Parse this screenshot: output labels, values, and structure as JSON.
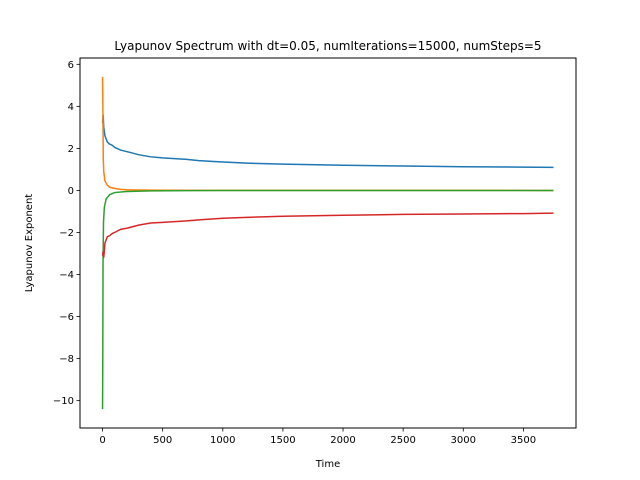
{
  "chart_data": {
    "type": "line",
    "title": "Lyapunov Spectrum with dt=0.05, numIterations=15000, numSteps=5",
    "xlabel": "Time",
    "ylabel": "Lyapunov Exponent",
    "xlim": [
      -187.5,
      3937.5
    ],
    "ylim": [
      -11.3,
      6.3
    ],
    "x_ticks": [
      0,
      500,
      1000,
      1500,
      2000,
      2500,
      3000,
      3500
    ],
    "y_ticks": [
      -10,
      -8,
      -6,
      -4,
      -2,
      0,
      2,
      4,
      6
    ],
    "grid": false,
    "legend": "none",
    "series": [
      {
        "color": "#1f77b4",
        "points": [
          [
            0,
            3.2
          ],
          [
            5,
            3.6
          ],
          [
            10,
            3.0
          ],
          [
            20,
            2.6
          ],
          [
            40,
            2.3
          ],
          [
            60,
            2.2
          ],
          [
            80,
            2.15
          ],
          [
            100,
            2.05
          ],
          [
            150,
            1.92
          ],
          [
            200,
            1.85
          ],
          [
            300,
            1.7
          ],
          [
            400,
            1.6
          ],
          [
            500,
            1.55
          ],
          [
            700,
            1.48
          ],
          [
            800,
            1.42
          ],
          [
            1000,
            1.35
          ],
          [
            1200,
            1.3
          ],
          [
            1500,
            1.25
          ],
          [
            2000,
            1.2
          ],
          [
            2500,
            1.16
          ],
          [
            3000,
            1.13
          ],
          [
            3500,
            1.11
          ],
          [
            3750,
            1.1
          ]
        ]
      },
      {
        "color": "#ff7f0e",
        "points": [
          [
            0,
            5.4
          ],
          [
            2,
            4.5
          ],
          [
            4,
            3.0
          ],
          [
            6,
            1.5
          ],
          [
            10,
            0.9
          ],
          [
            20,
            0.45
          ],
          [
            40,
            0.25
          ],
          [
            60,
            0.15
          ],
          [
            100,
            0.1
          ],
          [
            150,
            0.05
          ],
          [
            200,
            0.03
          ],
          [
            300,
            0.02
          ],
          [
            500,
            0.01
          ],
          [
            1000,
            0.005
          ],
          [
            2000,
            0.002
          ],
          [
            3750,
            0.0
          ]
        ]
      },
      {
        "color": "#2ca02c",
        "points": [
          [
            0,
            -10.4
          ],
          [
            2,
            -8.0
          ],
          [
            4,
            -3.5
          ],
          [
            8,
            -1.5
          ],
          [
            15,
            -0.8
          ],
          [
            30,
            -0.4
          ],
          [
            60,
            -0.2
          ],
          [
            100,
            -0.1
          ],
          [
            200,
            -0.05
          ],
          [
            400,
            -0.02
          ],
          [
            700,
            -0.01
          ],
          [
            1000,
            0.0
          ],
          [
            2000,
            0.0
          ],
          [
            3750,
            0.0
          ]
        ]
      },
      {
        "color": "#d62728",
        "points": [
          [
            0,
            -3.1
          ],
          [
            5,
            -2.9
          ],
          [
            10,
            -3.2
          ],
          [
            20,
            -2.5
          ],
          [
            40,
            -2.2
          ],
          [
            60,
            -2.15
          ],
          [
            80,
            -2.05
          ],
          [
            100,
            -2.0
          ],
          [
            150,
            -1.85
          ],
          [
            200,
            -1.8
          ],
          [
            300,
            -1.65
          ],
          [
            400,
            -1.55
          ],
          [
            500,
            -1.52
          ],
          [
            700,
            -1.45
          ],
          [
            800,
            -1.4
          ],
          [
            1000,
            -1.32
          ],
          [
            1200,
            -1.28
          ],
          [
            1500,
            -1.23
          ],
          [
            2000,
            -1.18
          ],
          [
            2500,
            -1.14
          ],
          [
            3000,
            -1.12
          ],
          [
            3500,
            -1.1
          ],
          [
            3750,
            -1.08
          ]
        ]
      }
    ]
  }
}
